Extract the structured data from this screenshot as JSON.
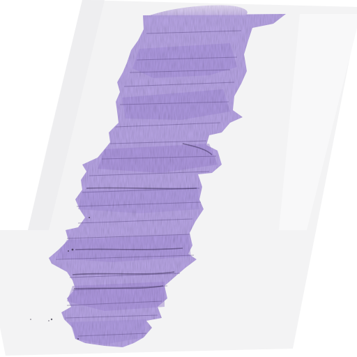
{
  "image": {
    "subject": "slide-tissue-section",
    "stain": "purple-histology-stain"
  },
  "colors": {
    "background": "#ffffff",
    "slide_mount": "#f3f3f4",
    "slide_mount_edge": "#e7e7ea",
    "tissue_light": "#c9b8ec",
    "tissue_mid": "#ab96dd",
    "tissue_dark": "#8a73c3",
    "tissue_line": "#5a4a7c",
    "tissue_speck": "#2b2438"
  }
}
